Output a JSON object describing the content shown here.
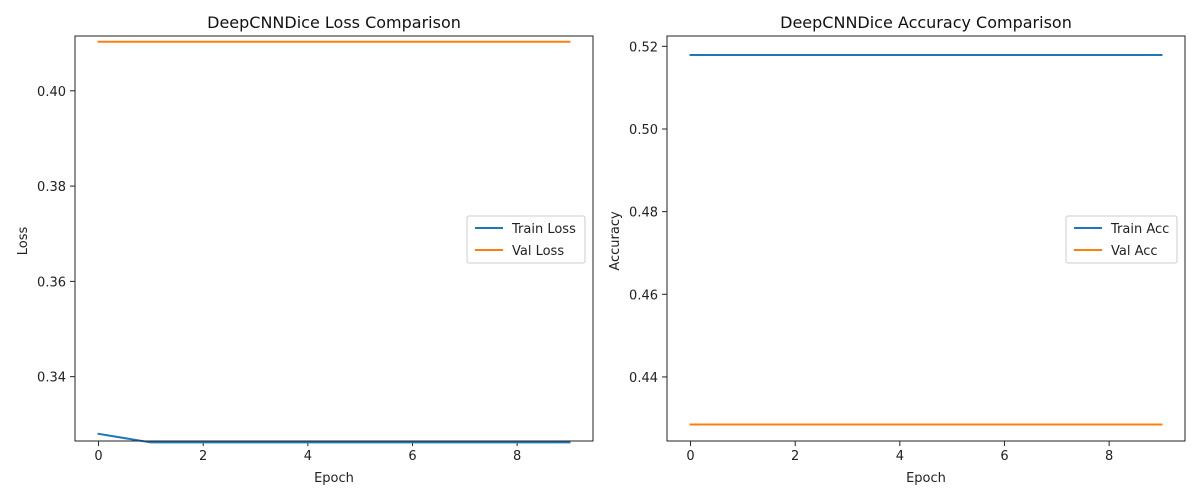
{
  "chart_data": [
    {
      "type": "line",
      "title": "DeepCNNDice Loss Comparison",
      "xlabel": "Epoch",
      "ylabel": "Loss",
      "xlim": [
        -0.45,
        9.45
      ],
      "ylim": [
        0.3265,
        0.4115
      ],
      "xticks": [
        0,
        2,
        4,
        6,
        8
      ],
      "yticks": [
        0.34,
        0.36,
        0.38,
        0.4
      ],
      "ytick_labels": [
        "0.34",
        "0.36",
        "0.38",
        "0.40"
      ],
      "x": [
        0,
        1,
        2,
        3,
        4,
        5,
        6,
        7,
        8,
        9
      ],
      "legend_position": "center-right",
      "grid": false,
      "series": [
        {
          "name": "Train Loss",
          "color": "#1f77b4",
          "values": [
            0.328,
            0.3262,
            0.3262,
            0.3262,
            0.3262,
            0.3262,
            0.3262,
            0.3262,
            0.3262,
            0.3262
          ]
        },
        {
          "name": "Val Loss",
          "color": "#ff7f0e",
          "values": [
            0.4103,
            0.4103,
            0.4103,
            0.4103,
            0.4103,
            0.4103,
            0.4103,
            0.4103,
            0.4103,
            0.4103
          ]
        }
      ]
    },
    {
      "type": "line",
      "title": "DeepCNNDice Accuracy Comparison",
      "xlabel": "Epoch",
      "ylabel": "Accuracy",
      "xlim": [
        -0.45,
        9.45
      ],
      "ylim": [
        0.4245,
        0.5225
      ],
      "xticks": [
        0,
        2,
        4,
        6,
        8
      ],
      "yticks": [
        0.44,
        0.46,
        0.48,
        0.5,
        0.52
      ],
      "ytick_labels": [
        "0.44",
        "0.46",
        "0.48",
        "0.50",
        "0.52"
      ],
      "x": [
        0,
        1,
        2,
        3,
        4,
        5,
        6,
        7,
        8,
        9
      ],
      "legend_position": "center-right",
      "grid": false,
      "series": [
        {
          "name": "Train Acc",
          "color": "#1f77b4",
          "values": [
            0.5179,
            0.5179,
            0.5179,
            0.5179,
            0.5179,
            0.5179,
            0.5179,
            0.5179,
            0.5179,
            0.5179
          ]
        },
        {
          "name": "Val Acc",
          "color": "#ff7f0e",
          "values": [
            0.4285,
            0.4285,
            0.4285,
            0.4285,
            0.4285,
            0.4285,
            0.4285,
            0.4285,
            0.4285,
            0.4285
          ]
        }
      ]
    }
  ]
}
